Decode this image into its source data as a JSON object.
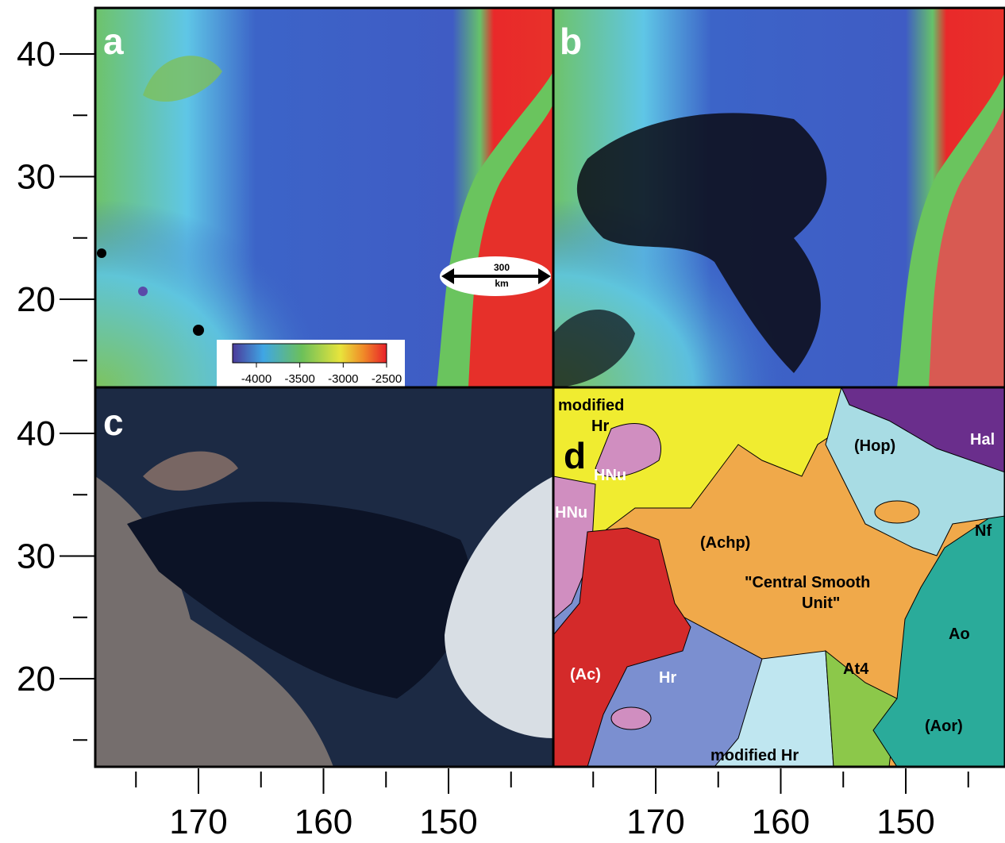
{
  "panels": [
    {
      "label": "a"
    },
    {
      "label": "b"
    },
    {
      "label": "c"
    },
    {
      "label": "d"
    }
  ],
  "lat_ticks": [
    40,
    30,
    20
  ],
  "lon_ticks": [
    170,
    160,
    150
  ],
  "colorbar": {
    "ticks": [
      -4000,
      -3500,
      -3000,
      -2500
    ]
  },
  "scale_bar": {
    "value": "300",
    "unit": "km"
  },
  "map_units": [
    "modified",
    "Hr",
    "HNu",
    "HNu",
    "(Hop)",
    "Hal",
    "Nf",
    "(Achp)",
    "\"Central Smooth",
    "Unit\"",
    "Ao",
    "(Ac)",
    "Hr",
    "At4",
    "(Aor)",
    "modified Hr"
  ]
}
